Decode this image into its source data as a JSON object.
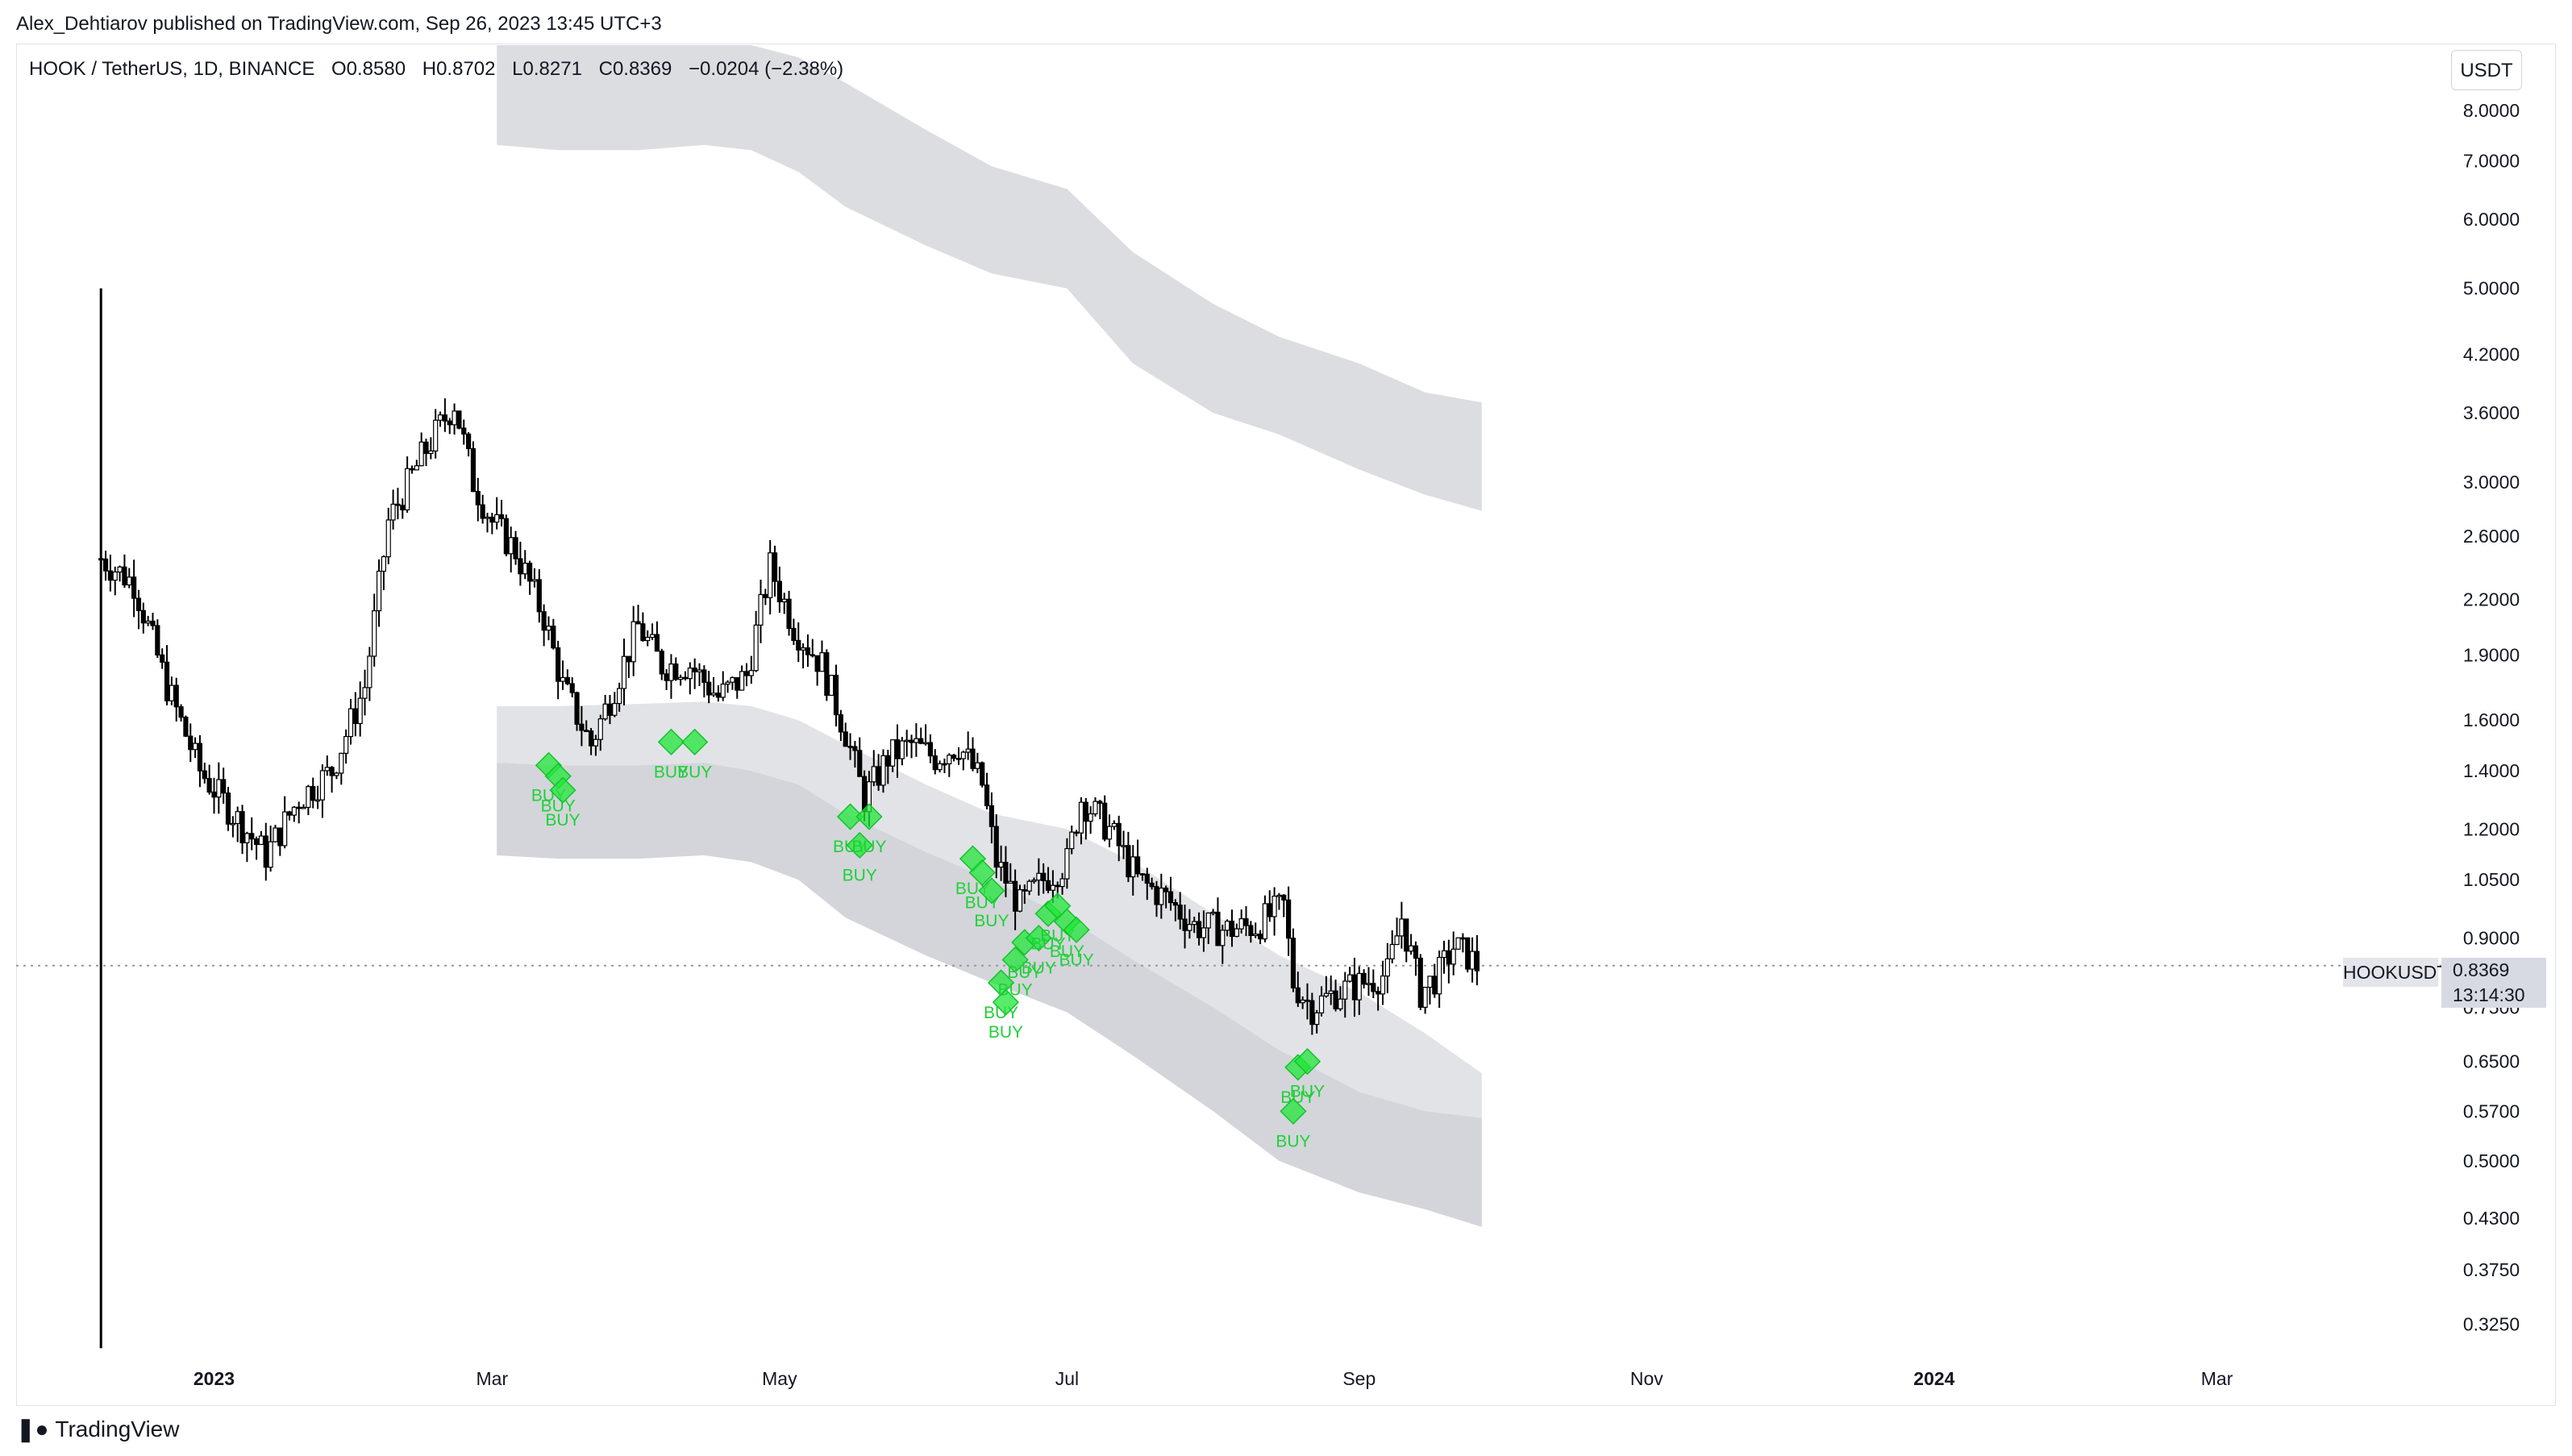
{
  "publisher_line": "Alex_Dehtiarov published on TradingView.com, Sep 26, 2023 13:45 UTC+3",
  "symbol_header": {
    "name": "HOOK / TetherUS, 1D, BINANCE",
    "open": "O0.8580",
    "high": "H0.8702",
    "low": "L0.8271",
    "close": "C0.8369",
    "change": "−0.0204 (−2.38%)"
  },
  "currency_button": "USDT",
  "last_price": {
    "symbol": "HOOKUSDT",
    "price": "0.8369",
    "countdown": "13:14:30"
  },
  "footer_logo": "TradingView",
  "colors": {
    "candles": "#000000",
    "band": "#d1d4dc",
    "buy_signal": "#22e53a",
    "grid_text": "#131722",
    "last_price_line": "#9598a1"
  },
  "chart_data": {
    "type": "candlestick",
    "scale": "log",
    "ylim": [
      0.3,
      9.5
    ],
    "xlim": [
      "2022-11-20",
      "2024-04-06"
    ],
    "y_ticks": [
      8.0,
      7.0,
      6.0,
      5.0,
      4.2,
      3.6,
      3.0,
      2.6,
      2.2,
      1.9,
      1.6,
      1.4,
      1.2,
      1.05,
      0.9,
      0.75,
      0.65,
      0.57,
      0.5,
      0.43,
      0.375,
      0.325
    ],
    "y_tick_labels": [
      "8.0000",
      "7.0000",
      "6.0000",
      "5.0000",
      "4.2000",
      "3.6000",
      "3.0000",
      "2.6000",
      "2.2000",
      "1.9000",
      "1.6000",
      "1.4000",
      "1.2000",
      "1.0500",
      "0.9000",
      "0.7500",
      "0.6500",
      "0.5700",
      "0.5000",
      "0.4300",
      "0.3750",
      "0.3250"
    ],
    "x_ticks": [
      {
        "label": "2023",
        "date": "2023-01-01",
        "bold": true
      },
      {
        "label": "Mar",
        "date": "2023-03-01",
        "bold": false
      },
      {
        "label": "May",
        "date": "2023-05-01",
        "bold": false
      },
      {
        "label": "Jul",
        "date": "2023-07-01",
        "bold": false
      },
      {
        "label": "Sep",
        "date": "2023-09-01",
        "bold": false
      },
      {
        "label": "Nov",
        "date": "2023-11-01",
        "bold": false
      },
      {
        "label": "2024",
        "date": "2024-01-01",
        "bold": true
      },
      {
        "label": "Mar",
        "date": "2024-03-01",
        "bold": false
      }
    ],
    "listing_wick": {
      "date": "2022-12-08",
      "high": 5.0,
      "low": 0.305
    },
    "last_price": 0.8369,
    "price_path": [
      [
        "2022-12-08",
        2.45
      ],
      [
        "2022-12-15",
        2.3
      ],
      [
        "2022-12-22",
        1.75
      ],
      [
        "2022-12-29",
        1.4
      ],
      [
        "2023-01-05",
        1.25
      ],
      [
        "2023-01-12",
        1.12
      ],
      [
        "2023-01-19",
        1.3
      ],
      [
        "2023-01-26",
        1.4
      ],
      [
        "2023-02-02",
        1.75
      ],
      [
        "2023-02-07",
        2.7
      ],
      [
        "2023-02-14",
        3.2
      ],
      [
        "2023-02-21",
        3.7
      ],
      [
        "2023-02-25",
        3.0
      ],
      [
        "2023-03-01",
        2.7
      ],
      [
        "2023-03-06",
        2.5
      ],
      [
        "2023-03-12",
        2.1
      ],
      [
        "2023-03-16",
        1.75
      ],
      [
        "2023-03-22",
        1.5
      ],
      [
        "2023-03-27",
        1.75
      ],
      [
        "2023-04-01",
        2.05
      ],
      [
        "2023-04-06",
        1.85
      ],
      [
        "2023-04-12",
        1.85
      ],
      [
        "2023-04-18",
        1.7
      ],
      [
        "2023-04-24",
        1.8
      ],
      [
        "2023-04-29",
        2.4
      ],
      [
        "2023-05-04",
        2.05
      ],
      [
        "2023-05-10",
        1.85
      ],
      [
        "2023-05-15",
        1.55
      ],
      [
        "2023-05-19",
        1.3
      ],
      [
        "2023-05-24",
        1.45
      ],
      [
        "2023-05-29",
        1.5
      ],
      [
        "2023-06-03",
        1.45
      ],
      [
        "2023-06-08",
        1.5
      ],
      [
        "2023-06-13",
        1.35
      ],
      [
        "2023-06-16",
        1.1
      ],
      [
        "2023-06-21",
        0.98
      ],
      [
        "2023-06-26",
        1.05
      ],
      [
        "2023-07-01",
        1.1
      ],
      [
        "2023-07-04",
        1.3
      ],
      [
        "2023-07-10",
        1.2
      ],
      [
        "2023-07-16",
        1.05
      ],
      [
        "2023-07-22",
        1.0
      ],
      [
        "2023-07-28",
        0.93
      ],
      [
        "2023-08-04",
        0.92
      ],
      [
        "2023-08-10",
        0.93
      ],
      [
        "2023-08-16",
        0.98
      ],
      [
        "2023-08-18",
        0.8
      ],
      [
        "2023-08-22",
        0.75
      ],
      [
        "2023-08-27",
        0.78
      ],
      [
        "2023-09-02",
        0.8
      ],
      [
        "2023-09-07",
        0.82
      ],
      [
        "2023-09-10",
        0.95
      ],
      [
        "2023-09-14",
        0.78
      ],
      [
        "2023-09-18",
        0.82
      ],
      [
        "2023-09-21",
        0.88
      ],
      [
        "2023-09-24",
        0.86
      ],
      [
        "2023-09-26",
        0.8369
      ]
    ],
    "bands": {
      "upper": {
        "dates": [
          "2023-03-02",
          "2023-03-15",
          "2023-04-01",
          "2023-04-15",
          "2023-04-25",
          "2023-05-05",
          "2023-05-15",
          "2023-06-01",
          "2023-06-15",
          "2023-07-01",
          "2023-07-15",
          "2023-08-01",
          "2023-08-15",
          "2023-09-01",
          "2023-09-15",
          "2023-09-27"
        ],
        "top": [
          9.5,
          9.5,
          9.5,
          9.5,
          9.5,
          9.2,
          8.6,
          7.6,
          6.9,
          6.5,
          5.5,
          4.8,
          4.4,
          4.1,
          3.8,
          3.7
        ],
        "bottom": [
          7.3,
          7.2,
          7.2,
          7.3,
          7.2,
          6.8,
          6.2,
          5.6,
          5.2,
          5.0,
          4.1,
          3.6,
          3.4,
          3.1,
          2.9,
          2.78
        ]
      },
      "lower": {
        "dates": [
          "2023-03-02",
          "2023-03-15",
          "2023-04-01",
          "2023-04-15",
          "2023-04-25",
          "2023-05-05",
          "2023-05-15",
          "2023-06-01",
          "2023-06-15",
          "2023-07-01",
          "2023-07-15",
          "2023-08-01",
          "2023-08-15",
          "2023-09-01",
          "2023-09-15",
          "2023-09-27"
        ],
        "top": [
          1.66,
          1.66,
          1.67,
          1.68,
          1.66,
          1.6,
          1.5,
          1.35,
          1.25,
          1.2,
          1.1,
          0.96,
          0.86,
          0.78,
          0.7,
          0.63
        ],
        "mid": [
          1.43,
          1.42,
          1.42,
          1.43,
          1.4,
          1.35,
          1.25,
          1.13,
          1.05,
          0.95,
          0.85,
          0.75,
          0.67,
          0.6,
          0.57,
          0.56
        ],
        "bottom": [
          1.12,
          1.11,
          1.11,
          1.12,
          1.1,
          1.05,
          0.95,
          0.86,
          0.8,
          0.74,
          0.66,
          0.57,
          0.5,
          0.46,
          0.44,
          0.42
        ]
      }
    },
    "buy_signals": [
      {
        "date": "2023-03-13",
        "price": 1.42,
        "label": "BUY"
      },
      {
        "date": "2023-03-15",
        "price": 1.38,
        "label": "BUY"
      },
      {
        "date": "2023-03-16",
        "price": 1.33,
        "label": "BUY"
      },
      {
        "date": "2023-04-08",
        "price": 1.51,
        "label": "BUY"
      },
      {
        "date": "2023-04-13",
        "price": 1.51,
        "label": "BUY"
      },
      {
        "date": "2023-05-16",
        "price": 1.24,
        "label": "BUY"
      },
      {
        "date": "2023-05-18",
        "price": 1.15,
        "label": "BUY"
      },
      {
        "date": "2023-05-20",
        "price": 1.24,
        "label": "BUY"
      },
      {
        "date": "2023-06-11",
        "price": 1.11,
        "label": "BUY"
      },
      {
        "date": "2023-06-13",
        "price": 1.07,
        "label": "BUY"
      },
      {
        "date": "2023-06-15",
        "price": 1.02,
        "label": "BUY"
      },
      {
        "date": "2023-06-17",
        "price": 0.8,
        "label": "BUY"
      },
      {
        "date": "2023-06-18",
        "price": 0.76,
        "label": "BUY"
      },
      {
        "date": "2023-06-20",
        "price": 0.85,
        "label": "BUY"
      },
      {
        "date": "2023-06-22",
        "price": 0.89,
        "label": "BUY"
      },
      {
        "date": "2023-06-25",
        "price": 0.9,
        "label": "BUY"
      },
      {
        "date": "2023-06-27",
        "price": 0.96,
        "label": "BUY"
      },
      {
        "date": "2023-06-29",
        "price": 0.98,
        "label": "BUY"
      },
      {
        "date": "2023-07-01",
        "price": 0.94,
        "label": "BUY"
      },
      {
        "date": "2023-07-03",
        "price": 0.92,
        "label": "BUY"
      },
      {
        "date": "2023-08-19",
        "price": 0.64,
        "label": "BUY"
      },
      {
        "date": "2023-08-21",
        "price": 0.65,
        "label": "BUY"
      },
      {
        "date": "2023-08-18",
        "price": 0.57,
        "label": "BUY"
      }
    ]
  }
}
